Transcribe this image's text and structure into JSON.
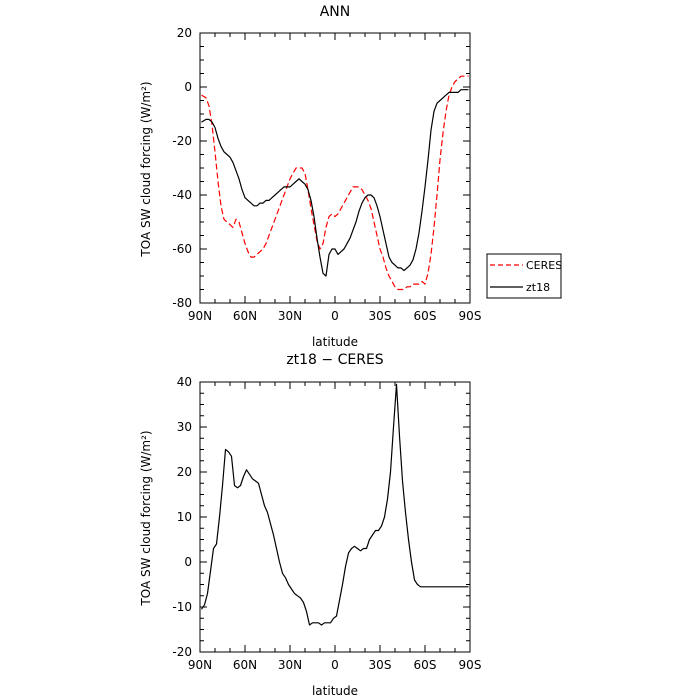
{
  "chart_data": [
    {
      "type": "line",
      "title": "ANN",
      "xlabel": "latitude",
      "ylabel": "TOA SW cloud forcing (W/m²)",
      "xlim": [
        90,
        -90
      ],
      "ylim": [
        -80,
        20
      ],
      "x_ticks": [
        {
          "value": 90,
          "label": "90N"
        },
        {
          "value": 60,
          "label": "60N"
        },
        {
          "value": 30,
          "label": "30N"
        },
        {
          "value": 0,
          "label": "0"
        },
        {
          "value": -30,
          "label": "30S"
        },
        {
          "value": -60,
          "label": "60S"
        },
        {
          "value": -90,
          "label": "90S"
        }
      ],
      "y_ticks": [
        20,
        0,
        -20,
        -40,
        -60,
        -80
      ],
      "legend": {
        "placement": "outside-right",
        "entries": [
          "CERES",
          "zt18"
        ]
      },
      "series": [
        {
          "name": "CERES",
          "color": "#ff0000",
          "dash": "dashed",
          "x": [
            89,
            86,
            84,
            82,
            80,
            78,
            76,
            74,
            72,
            70,
            68,
            66,
            64,
            62,
            60,
            58,
            56,
            54,
            52,
            50,
            48,
            46,
            44,
            42,
            40,
            38,
            36,
            34,
            32,
            30,
            28,
            26,
            24,
            22,
            20,
            18,
            16,
            14,
            12,
            10,
            8,
            6,
            4,
            2,
            0,
            -2,
            -4,
            -6,
            -8,
            -10,
            -12,
            -14,
            -16,
            -18,
            -20,
            -22,
            -24,
            -26,
            -28,
            -30,
            -32,
            -34,
            -36,
            -38,
            -40,
            -42,
            -44,
            -46,
            -48,
            -50,
            -52,
            -54,
            -56,
            -58,
            -60,
            -62,
            -64,
            -66,
            -68,
            -70,
            -72,
            -74,
            -76,
            -78,
            -80,
            -82,
            -84,
            -86,
            -89
          ],
          "values": [
            -3,
            -4,
            -7,
            -14,
            -24,
            -35,
            -44,
            -49,
            -50,
            -51,
            -52,
            -49,
            -50,
            -54,
            -58,
            -61,
            -63,
            -63,
            -62,
            -61,
            -60,
            -58,
            -55,
            -52,
            -49,
            -46,
            -43,
            -40,
            -37,
            -34,
            -32,
            -30,
            -30,
            -30,
            -32,
            -38,
            -45,
            -51,
            -57,
            -60,
            -58,
            -52,
            -48,
            -47,
            -48,
            -47,
            -45,
            -43,
            -41,
            -39,
            -37,
            -37,
            -37,
            -38,
            -40,
            -42,
            -45,
            -50,
            -55,
            -60,
            -63,
            -67,
            -70,
            -72,
            -74,
            -75,
            -75,
            -75,
            -74,
            -74,
            -73,
            -73,
            -73,
            -72,
            -73,
            -69,
            -62,
            -52,
            -40,
            -27,
            -17,
            -9,
            -3,
            0,
            2,
            3,
            4,
            4,
            4
          ]
        },
        {
          "name": "zt18",
          "color": "#000000",
          "dash": "solid",
          "x": [
            89,
            86,
            84,
            82,
            80,
            78,
            76,
            74,
            72,
            70,
            68,
            66,
            64,
            62,
            60,
            58,
            56,
            54,
            52,
            50,
            48,
            46,
            44,
            42,
            40,
            38,
            36,
            34,
            32,
            30,
            28,
            26,
            24,
            22,
            20,
            18,
            16,
            14,
            12,
            10,
            8,
            6,
            4,
            2,
            0,
            -2,
            -4,
            -6,
            -8,
            -10,
            -12,
            -14,
            -16,
            -18,
            -20,
            -22,
            -24,
            -26,
            -28,
            -30,
            -32,
            -34,
            -36,
            -38,
            -40,
            -42,
            -44,
            -46,
            -48,
            -50,
            -52,
            -54,
            -56,
            -58,
            -60,
            -62,
            -64,
            -66,
            -68,
            -70,
            -72,
            -74,
            -76,
            -78,
            -80,
            -82,
            -84,
            -86,
            -89
          ],
          "values": [
            -13,
            -12,
            -12,
            -13,
            -15,
            -19,
            -22,
            -24,
            -25,
            -26,
            -28,
            -31,
            -34,
            -38,
            -41,
            -42,
            -43,
            -44,
            -44,
            -43,
            -43,
            -42,
            -42,
            -41,
            -40,
            -39,
            -38,
            -37,
            -37,
            -37,
            -36,
            -35,
            -34,
            -35,
            -36,
            -38,
            -42,
            -48,
            -56,
            -63,
            -69,
            -70,
            -62,
            -60,
            -60,
            -62,
            -61,
            -60,
            -58,
            -56,
            -53,
            -50,
            -46,
            -43,
            -41,
            -40,
            -40,
            -41,
            -44,
            -48,
            -53,
            -58,
            -63,
            -65,
            -66,
            -67,
            -67,
            -68,
            -67,
            -66,
            -64,
            -60,
            -54,
            -46,
            -37,
            -27,
            -16,
            -9,
            -6,
            -5,
            -4,
            -3,
            -2,
            -2,
            -2,
            -2,
            -1,
            -1,
            -1
          ]
        }
      ]
    },
    {
      "type": "line",
      "title": "zt18 − CERES",
      "xlabel": "latitude",
      "ylabel": "TOA SW cloud forcing (W/m²)",
      "xlim": [
        90,
        -90
      ],
      "ylim": [
        -20,
        40
      ],
      "x_ticks": [
        {
          "value": 90,
          "label": "90N"
        },
        {
          "value": 60,
          "label": "60N"
        },
        {
          "value": 30,
          "label": "30N"
        },
        {
          "value": 0,
          "label": "0"
        },
        {
          "value": -30,
          "label": "30S"
        },
        {
          "value": -60,
          "label": "60S"
        },
        {
          "value": -90,
          "label": "90S"
        }
      ],
      "y_ticks": [
        40,
        30,
        20,
        10,
        0,
        -10,
        -20
      ],
      "series": [
        {
          "name": "",
          "color": "#000000",
          "dash": "solid",
          "x": [
            89,
            87,
            85,
            83,
            81,
            79,
            77,
            75,
            73,
            71,
            69,
            67,
            65,
            63,
            61,
            59,
            57,
            55,
            53,
            51,
            49,
            47,
            45,
            43,
            41,
            39,
            37,
            35,
            33,
            31,
            29,
            27,
            25,
            23,
            21,
            19,
            17,
            15,
            13,
            11,
            9,
            7,
            5,
            3,
            1,
            -1,
            -3,
            -5,
            -7,
            -9,
            -11,
            -13,
            -15,
            -17,
            -19,
            -21,
            -23,
            -25,
            -27,
            -29,
            -31,
            -33,
            -35,
            -37,
            -39,
            -41,
            -43,
            -45,
            -47,
            -49,
            -51,
            -53,
            -55,
            -57,
            -59,
            -61,
            -63,
            -65,
            -67,
            -69,
            -71,
            -73,
            -75,
            -77,
            -79,
            -81,
            -83,
            -85,
            -87,
            -89
          ],
          "values": [
            -10.5,
            -9.5,
            -7,
            -2,
            3,
            4,
            10,
            17,
            25,
            24.5,
            23.5,
            17,
            16.5,
            17,
            19,
            20.5,
            19.5,
            18.5,
            18,
            17.5,
            15,
            12.5,
            11,
            8.5,
            6,
            3,
            0,
            -2.5,
            -3.5,
            -5,
            -6,
            -7,
            -7.5,
            -8,
            -9,
            -11,
            -14,
            -13.5,
            -13.5,
            -13.5,
            -14,
            -13.5,
            -13.5,
            -13.5,
            -12.5,
            -12,
            -8.5,
            -5,
            -1,
            2,
            3,
            3.5,
            3,
            2.5,
            3,
            3,
            5,
            6,
            7,
            7,
            8,
            10,
            14,
            20,
            30,
            39.5,
            28,
            18,
            11,
            5,
            0,
            -4,
            -5,
            -5.5,
            -5.5,
            -5.5,
            -5.5,
            -5.5,
            -5.5,
            -5.5,
            -5.5,
            -5.5,
            -5.5,
            -5.5,
            -5.5,
            -5.5,
            -5.5,
            -5.5,
            -5.5,
            -5.5
          ]
        }
      ]
    }
  ]
}
